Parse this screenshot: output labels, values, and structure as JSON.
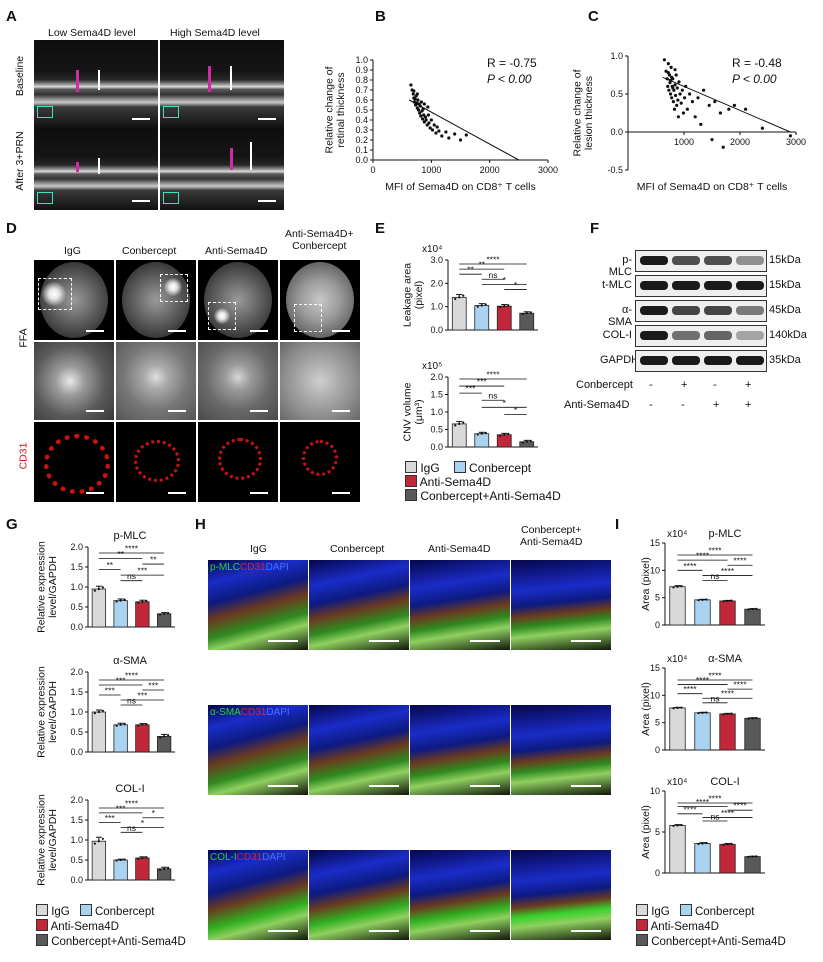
{
  "panel_letters": [
    "A",
    "B",
    "C",
    "D",
    "E",
    "F",
    "G",
    "H",
    "I"
  ],
  "panelA": {
    "col_headers": [
      "Low Sema4D level",
      "High Sema4D level"
    ],
    "row_labels": [
      "Baseline",
      "After 3+PRN"
    ]
  },
  "panelB": {
    "annot_r": "R = -0.75",
    "annot_p": "P < 0.00"
  },
  "panelC": {
    "annot_r": "R = -0.48",
    "annot_p": "P < 0.00"
  },
  "panelD": {
    "col_headers": [
      "IgG",
      "Conbercept",
      "Anti-Sema4D",
      "Anti-Sema4D+\nConbercept"
    ],
    "row_labels": [
      "FFA",
      "CD31"
    ]
  },
  "panelE": {
    "legend": [
      "IgG",
      "Conbercept",
      "Anti-Sema4D",
      "Conbercept+Anti-Sema4D"
    ]
  },
  "panelF": {
    "bands": [
      "p-MLC",
      "t-MLC",
      "α-SMA",
      "COL-I",
      "GAPDH"
    ],
    "sizes": [
      "15kDa",
      "15kDa",
      "45kDa",
      "140kDa",
      "35kDa"
    ],
    "treatments": [
      {
        "label": "Conbercept",
        "signs": [
          "-",
          "+",
          "-",
          "+"
        ]
      },
      {
        "label": "Anti-Sema4D",
        "signs": [
          "-",
          "-",
          "+",
          "+"
        ]
      }
    ],
    "band_intensity": {
      "p-MLC": [
        1.0,
        0.75,
        0.75,
        0.45
      ],
      "t-MLC": [
        1.0,
        1.0,
        1.0,
        1.0
      ],
      "α-SMA": [
        1.0,
        0.8,
        0.8,
        0.55
      ],
      "COL-I": [
        1.0,
        0.6,
        0.65,
        0.35
      ],
      "GAPDH": [
        1.0,
        1.0,
        1.0,
        1.0
      ]
    }
  },
  "panelH": {
    "col_headers": [
      "IgG",
      "Conbercept",
      "Anti-Sema4D",
      "Conbercept+\nAnti-Sema4D"
    ],
    "stain_labels": [
      [
        "p-MLC",
        "CD31",
        "DAPI"
      ],
      [
        "α-SMA",
        "CD31",
        "DAPI"
      ],
      [
        "COL-I",
        "CD31",
        "DAPI"
      ]
    ],
    "stain_colors": [
      "#2dd12d",
      "#e0202b",
      "#4a6cff"
    ]
  },
  "legend_GI": [
    "IgG",
    "Conbercept",
    "Anti-Sema4D",
    "Conbercept+Anti-Sema4D"
  ],
  "colors": {
    "IgG": "#d9d9d9",
    "Conbercept": "#a9d3f0",
    "Anti-Sema4D": "#c0283a",
    "Combo": "#595959",
    "wb_band": "#1a1a1a",
    "ffa_box": "#ffffff",
    "cd31": "#cc1111"
  },
  "chart_data": [
    {
      "panel": "B",
      "type": "scatter",
      "xlabel": "MFI of Sema4D on CD8⁺ T cells",
      "ylabel": "Relative change of\nretinal thickness",
      "xlim": [
        0,
        3000
      ],
      "ylim": [
        0,
        1.0
      ],
      "xticks": [
        "0",
        "1000",
        "2000",
        "3000"
      ],
      "yticks": [
        "0.0",
        "0.1",
        "0.2",
        "0.3",
        "0.4",
        "0.5",
        "0.6",
        "0.7",
        "0.8",
        "0.9",
        "1.0"
      ],
      "trend": [
        [
          620,
          0.6
        ],
        [
          2500,
          0.0
        ]
      ],
      "points": [
        [
          650,
          0.75
        ],
        [
          670,
          0.7
        ],
        [
          690,
          0.66
        ],
        [
          700,
          0.62
        ],
        [
          710,
          0.58
        ],
        [
          720,
          0.61
        ],
        [
          730,
          0.55
        ],
        [
          740,
          0.64
        ],
        [
          750,
          0.57
        ],
        [
          760,
          0.52
        ],
        [
          770,
          0.6
        ],
        [
          780,
          0.5
        ],
        [
          790,
          0.56
        ],
        [
          800,
          0.47
        ],
        [
          810,
          0.54
        ],
        [
          820,
          0.44
        ],
        [
          830,
          0.58
        ],
        [
          840,
          0.49
        ],
        [
          850,
          0.41
        ],
        [
          860,
          0.51
        ],
        [
          870,
          0.45
        ],
        [
          880,
          0.38
        ],
        [
          900,
          0.43
        ],
        [
          910,
          0.4
        ],
        [
          930,
          0.35
        ],
        [
          950,
          0.45
        ],
        [
          960,
          0.37
        ],
        [
          980,
          0.32
        ],
        [
          1000,
          0.4
        ],
        [
          1020,
          0.3
        ],
        [
          1050,
          0.35
        ],
        [
          1080,
          0.27
        ],
        [
          1100,
          0.33
        ],
        [
          1130,
          0.29
        ],
        [
          1180,
          0.24
        ],
        [
          1250,
          0.28
        ],
        [
          1300,
          0.22
        ],
        [
          1400,
          0.26
        ],
        [
          1500,
          0.2
        ],
        [
          1600,
          0.25
        ],
        [
          700,
          0.69
        ],
        [
          760,
          0.66
        ],
        [
          880,
          0.56
        ],
        [
          940,
          0.53
        ]
      ]
    },
    {
      "panel": "C",
      "type": "scatter",
      "xlabel": "MFI of Sema4D on CD8⁺ T cells",
      "ylabel": "Relative change of\nlesion thickness",
      "xlim": [
        0,
        3000
      ],
      "ylim": [
        -0.5,
        1.0
      ],
      "xticks": [
        "1000",
        "2000",
        "3000"
      ],
      "yticks": [
        "-0.5",
        "0.0",
        "0.5",
        "1.0"
      ],
      "trend": [
        [
          620,
          0.72
        ],
        [
          2900,
          0.0
        ]
      ],
      "points": [
        [
          650,
          0.95
        ],
        [
          680,
          0.8
        ],
        [
          700,
          0.7
        ],
        [
          710,
          0.6
        ],
        [
          720,
          0.9
        ],
        [
          730,
          0.55
        ],
        [
          740,
          0.75
        ],
        [
          750,
          0.65
        ],
        [
          760,
          0.5
        ],
        [
          770,
          0.85
        ],
        [
          780,
          0.45
        ],
        [
          790,
          0.6
        ],
        [
          800,
          0.7
        ],
        [
          810,
          0.4
        ],
        [
          820,
          0.55
        ],
        [
          830,
          0.3
        ],
        [
          840,
          0.62
        ],
        [
          850,
          0.48
        ],
        [
          860,
          0.75
        ],
        [
          870,
          0.35
        ],
        [
          880,
          0.58
        ],
        [
          890,
          0.42
        ],
        [
          900,
          0.2
        ],
        [
          910,
          0.66
        ],
        [
          930,
          0.5
        ],
        [
          950,
          0.38
        ],
        [
          970,
          0.55
        ],
        [
          990,
          0.25
        ],
        [
          1010,
          0.45
        ],
        [
          1030,
          0.6
        ],
        [
          1060,
          0.3
        ],
        [
          1100,
          0.5
        ],
        [
          1150,
          0.4
        ],
        [
          1200,
          0.2
        ],
        [
          1250,
          0.45
        ],
        [
          1300,
          0.1
        ],
        [
          1350,
          0.55
        ],
        [
          1450,
          0.35
        ],
        [
          1500,
          -0.1
        ],
        [
          1550,
          0.4
        ],
        [
          1650,
          0.25
        ],
        [
          1700,
          -0.2
        ],
        [
          1800,
          0.3
        ],
        [
          1900,
          0.35
        ],
        [
          2100,
          0.3
        ],
        [
          2400,
          0.05
        ],
        [
          2900,
          -0.05
        ],
        [
          720,
          0.78
        ],
        [
          760,
          0.68
        ],
        [
          800,
          0.58
        ],
        [
          840,
          0.82
        ],
        [
          780,
          0.72
        ]
      ]
    },
    {
      "panel": "E-top",
      "type": "bar",
      "ylabel": "Leakage area\n(pixel)",
      "scale": "x10⁴",
      "categories": [
        "IgG",
        "Conbercept",
        "Anti-Sema4D",
        "Conbercept+Anti-Sema4D"
      ],
      "values": [
        1.4,
        1.05,
        1.02,
        0.72
      ],
      "errors": [
        0.12,
        0.08,
        0.07,
        0.06
      ],
      "ylim": [
        0,
        3
      ],
      "yticks": [
        "0.0",
        "1.0",
        "2.0",
        "3.0"
      ],
      "sig": [
        [
          "****",
          0,
          3
        ],
        [
          "**",
          0,
          2
        ],
        [
          "**",
          0,
          1
        ],
        [
          "ns",
          1,
          2
        ],
        [
          "*",
          1,
          3
        ],
        [
          "*",
          2,
          3
        ]
      ]
    },
    {
      "panel": "E-bottom",
      "type": "bar",
      "ylabel": "CNV volume\n(μm³)",
      "scale": "x10⁵",
      "categories": [
        "IgG",
        "Conbercept",
        "Anti-Sema4D",
        "Conbercept+Anti-Sema4D"
      ],
      "values": [
        0.66,
        0.38,
        0.35,
        0.15
      ],
      "errors": [
        0.07,
        0.04,
        0.04,
        0.04
      ],
      "ylim": [
        0,
        2
      ],
      "yticks": [
        "0.0",
        "0.5",
        "1.0",
        "1.5",
        "2.0"
      ],
      "sig": [
        [
          "****",
          0,
          3
        ],
        [
          "***",
          0,
          2
        ],
        [
          "***",
          0,
          1
        ],
        [
          "ns",
          1,
          2
        ],
        [
          "*",
          1,
          3
        ],
        [
          "*",
          2,
          3
        ]
      ]
    },
    {
      "panel": "G-1",
      "type": "bar",
      "title": "p-MLC",
      "ylabel": "Relative expression\nlevel/GAPDH",
      "categories": [
        "IgG",
        "Conbercept",
        "Anti-Sema4D",
        "Conbercept+Anti-Sema4D"
      ],
      "values": [
        0.95,
        0.66,
        0.63,
        0.33
      ],
      "errors": [
        0.07,
        0.04,
        0.04,
        0.03
      ],
      "ylim": [
        0,
        2.0
      ],
      "yticks": [
        "0.0",
        "0.5",
        "1.0",
        "1.5",
        "2.0"
      ],
      "sig": [
        [
          "****",
          0,
          3
        ],
        [
          "**",
          0,
          2
        ],
        [
          "**",
          2,
          3
        ],
        [
          "**",
          0,
          1
        ],
        [
          "***",
          1,
          3
        ],
        [
          "ns",
          1,
          2
        ]
      ]
    },
    {
      "panel": "G-2",
      "type": "bar",
      "title": "α-SMA",
      "ylabel": "Relative expression\nlevel/GAPDH",
      "categories": [
        "IgG",
        "Conbercept",
        "Anti-Sema4D",
        "Conbercept+Anti-Sema4D"
      ],
      "values": [
        1.0,
        0.68,
        0.68,
        0.39
      ],
      "errors": [
        0.05,
        0.04,
        0.03,
        0.05
      ],
      "ylim": [
        0,
        2.0
      ],
      "yticks": [
        "0.0",
        "0.5",
        "1.0",
        "1.5",
        "2.0"
      ],
      "sig": [
        [
          "****",
          0,
          3
        ],
        [
          "***",
          0,
          2
        ],
        [
          "***",
          2,
          3
        ],
        [
          "***",
          0,
          1
        ],
        [
          "***",
          1,
          3
        ],
        [
          "ns",
          1,
          2
        ]
      ]
    },
    {
      "panel": "G-3",
      "type": "bar",
      "title": "COL-I",
      "ylabel": "Relative expression\nlevel/GAPDH",
      "categories": [
        "IgG",
        "Conbercept",
        "Anti-Sema4D",
        "Conbercept+Anti-Sema4D"
      ],
      "values": [
        0.97,
        0.5,
        0.55,
        0.28
      ],
      "errors": [
        0.1,
        0.02,
        0.03,
        0.04
      ],
      "ylim": [
        0,
        2.0
      ],
      "yticks": [
        "0.0",
        "0.5",
        "1.0",
        "1.5",
        "2.0"
      ],
      "sig": [
        [
          "****",
          0,
          3
        ],
        [
          "***",
          0,
          2
        ],
        [
          "*",
          2,
          3
        ],
        [
          "***",
          0,
          1
        ],
        [
          "*",
          1,
          3
        ],
        [
          "ns",
          1,
          2
        ]
      ]
    },
    {
      "panel": "I-1",
      "type": "bar",
      "title": "p-MLC",
      "ylabel": "Area (pixel)",
      "scale": "x10⁴",
      "categories": [
        "IgG",
        "Conbercept",
        "Anti-Sema4D",
        "Conbercept+Anti-Sema4D"
      ],
      "values": [
        7.0,
        4.6,
        4.4,
        2.9
      ],
      "errors": [
        0.2,
        0.1,
        0.1,
        0.1
      ],
      "ylim": [
        0,
        15
      ],
      "yticks": [
        "0",
        "5",
        "10",
        "15"
      ],
      "sig": [
        [
          "****",
          0,
          3
        ],
        [
          "****",
          0,
          2
        ],
        [
          "****",
          2,
          3
        ],
        [
          "****",
          0,
          1
        ],
        [
          "****",
          1,
          3
        ],
        [
          "ns",
          1,
          2
        ]
      ]
    },
    {
      "panel": "I-2",
      "type": "bar",
      "title": "α-SMA",
      "ylabel": "Area (pixel)",
      "scale": "x10⁴",
      "categories": [
        "IgG",
        "Conbercept",
        "Anti-Sema4D",
        "Conbercept+Anti-Sema4D"
      ],
      "values": [
        7.7,
        6.8,
        6.6,
        5.8
      ],
      "errors": [
        0.1,
        0.1,
        0.1,
        0.1
      ],
      "ylim": [
        0,
        15
      ],
      "yticks": [
        "0",
        "5",
        "10",
        "15"
      ],
      "sig": [
        [
          "****",
          0,
          3
        ],
        [
          "****",
          0,
          2
        ],
        [
          "****",
          2,
          3
        ],
        [
          "****",
          0,
          1
        ],
        [
          "****",
          1,
          3
        ],
        [
          "ns",
          1,
          2
        ]
      ]
    },
    {
      "panel": "I-3",
      "type": "bar",
      "title": "COL-I",
      "ylabel": "Area (pixel)",
      "scale": "x10⁴",
      "categories": [
        "IgG",
        "Conbercept",
        "Anti-Sema4D",
        "Conbercept+Anti-Sema4D"
      ],
      "values": [
        5.8,
        3.6,
        3.5,
        2.0
      ],
      "errors": [
        0.1,
        0.1,
        0.1,
        0.05
      ],
      "ylim": [
        0,
        10
      ],
      "yticks": [
        "0",
        "5",
        "10"
      ],
      "sig": [
        [
          "****",
          0,
          3
        ],
        [
          "****",
          0,
          2
        ],
        [
          "****",
          2,
          3
        ],
        [
          "****",
          0,
          1
        ],
        [
          "****",
          1,
          3
        ],
        [
          "ns",
          1,
          2
        ]
      ]
    }
  ]
}
